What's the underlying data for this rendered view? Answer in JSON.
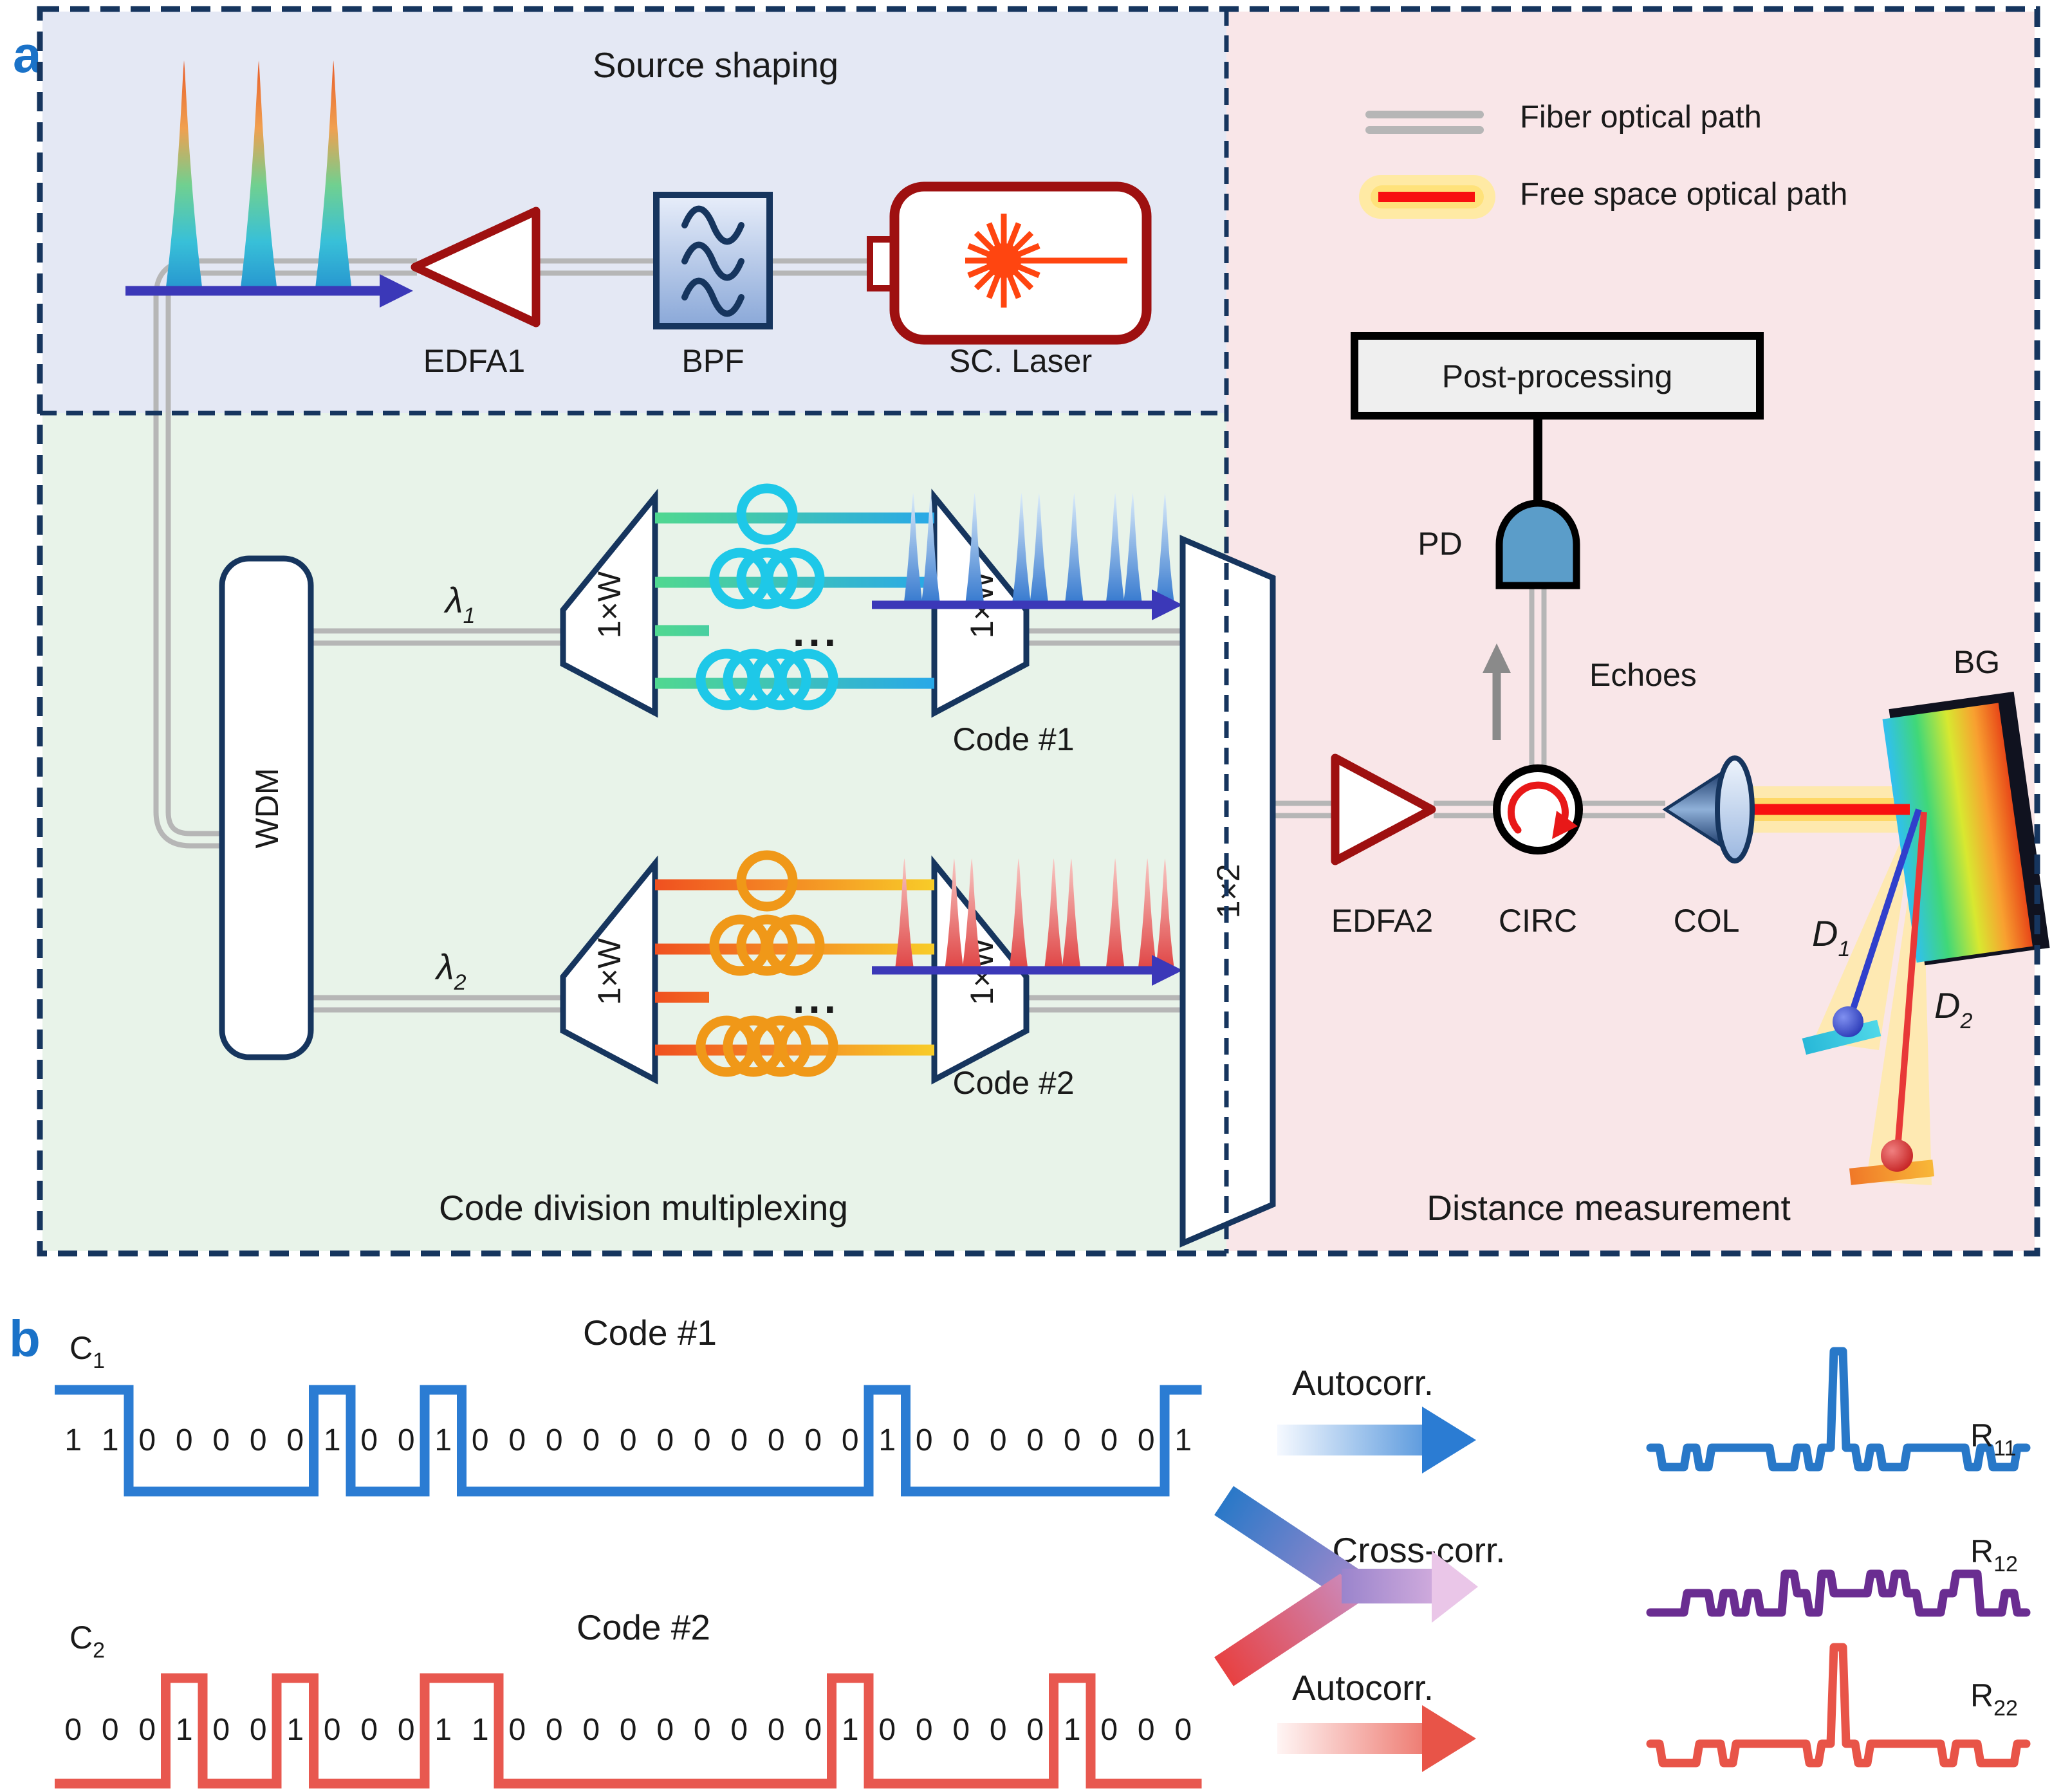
{
  "colors": {
    "region_source": "#e4e8f4",
    "region_cdm": "#e8f3e9",
    "region_distance": "#f9e6e8",
    "border_navy": "#16355e",
    "fiber_gray": "#b6b6b6",
    "amp_red": "#9e1010",
    "panel_letter_blue": "#1a72c8",
    "code1_blue": "#2b7cd3",
    "code2_red": "#e8584f",
    "cross_purple": "#6a2d91",
    "lambda1_blue": "#4444cc",
    "lambda2_red": "#e02020",
    "free_space_red": "#f81010",
    "glow_yellow": "#ffeaa4",
    "pd_blue": "#5b9dc9",
    "laser_orange": "#ff4510"
  },
  "panel_a": {
    "label": "a",
    "regions": {
      "source": "Source shaping",
      "cdm": "Code division multiplexing",
      "distance": "Distance measurement"
    },
    "legend": {
      "fiber": "Fiber optical path",
      "free_space": "Free space optical path"
    },
    "source_chain": {
      "edfa1": "EDFA1",
      "bpf": "BPF",
      "laser": "SC. Laser"
    },
    "wdm": "WDM",
    "splitter": "1×W",
    "combiner": "1×2",
    "lambda1": {
      "base": "λ",
      "sub": "1"
    },
    "lambda2": {
      "base": "λ",
      "sub": "2"
    },
    "dots": "...",
    "code1_label": "Code #1",
    "code2_label": "Code #2",
    "receiver": {
      "post": "Post-processing",
      "pd": "PD",
      "echoes": "Echoes",
      "edfa2": "EDFA2",
      "circ": "CIRC",
      "col": "COL",
      "bg": "BG"
    },
    "targets": {
      "d1": {
        "base": "D",
        "sub": "1"
      },
      "d2": {
        "base": "D",
        "sub": "2"
      }
    }
  },
  "panel_b": {
    "label": "b",
    "c1": {
      "base": "C",
      "sub": "1"
    },
    "c2": {
      "base": "C",
      "sub": "2"
    },
    "code1_title": "Code #1",
    "code2_title": "Code #2",
    "code1_bits": [
      1,
      1,
      0,
      0,
      0,
      0,
      0,
      1,
      0,
      0,
      1,
      0,
      0,
      0,
      0,
      0,
      0,
      0,
      0,
      0,
      0,
      0,
      1,
      0,
      0,
      0,
      0,
      0,
      0,
      0,
      1
    ],
    "code2_bits": [
      0,
      0,
      0,
      1,
      0,
      0,
      1,
      0,
      0,
      0,
      1,
      1,
      0,
      0,
      0,
      0,
      0,
      0,
      0,
      0,
      0,
      1,
      0,
      0,
      0,
      0,
      0,
      1,
      0,
      0,
      0
    ],
    "ops": {
      "autocorr1": "Autocorr.",
      "cross": "Cross-corr.",
      "autocorr2": "Autocorr."
    },
    "results": {
      "r11": {
        "base": "R",
        "sub": "11"
      },
      "r12": {
        "base": "R",
        "sub": "12"
      },
      "r22": {
        "base": "R",
        "sub": "22"
      }
    }
  },
  "pulse_trains": {
    "source": [
      0.2,
      0.47,
      0.74
    ],
    "code1": [
      0.13,
      0.19,
      0.34,
      0.5,
      0.56,
      0.68,
      0.82,
      0.88,
      0.99
    ],
    "code2": [
      0.1,
      0.27,
      0.33,
      0.49,
      0.61,
      0.67,
      0.82,
      0.93,
      0.99
    ]
  },
  "coils": {
    "lambda1_loops": [
      1,
      3,
      4
    ],
    "lambda2_loops": [
      1,
      3,
      4
    ]
  }
}
